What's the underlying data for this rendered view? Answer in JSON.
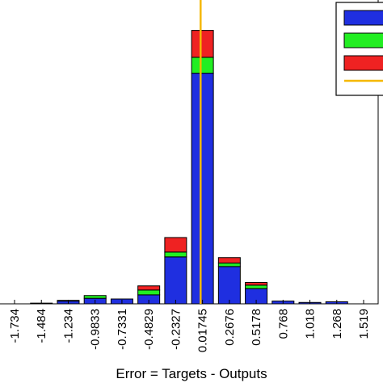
{
  "chart_data": {
    "type": "bar",
    "stacked": true,
    "xlabel": "Error = Targets - Outputs",
    "categories": [
      "-1.734",
      "-1.484",
      "-1.234",
      "-0.9833",
      "-0.7331",
      "-0.4829",
      "-0.2327",
      "0.01745",
      "0.2676",
      "0.5178",
      "0.768",
      "1.018",
      "1.268",
      "1.519"
    ],
    "series": [
      {
        "color": "#1f2fe0",
        "values": [
          0,
          1,
          4,
          8,
          7,
          13,
          68,
          334,
          54,
          22,
          4,
          2,
          3,
          0
        ]
      },
      {
        "color": "#22ee22",
        "values": [
          0,
          0,
          1,
          4,
          0,
          7,
          7,
          23,
          5,
          5,
          0,
          0,
          0,
          0
        ]
      },
      {
        "color": "#ef2222",
        "values": [
          0,
          0,
          0,
          0,
          0,
          6,
          21,
          39,
          8,
          4,
          0,
          0,
          0,
          0
        ]
      }
    ],
    "zero_error_line": {
      "x": 0,
      "color": "#f5b800"
    },
    "legend": {
      "placement": "top-right"
    },
    "ylim": [
      0,
      440
    ],
    "grid": false
  }
}
